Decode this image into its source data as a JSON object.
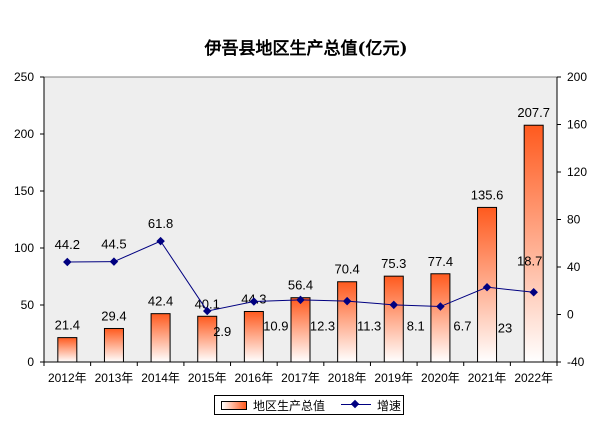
{
  "chart_data": {
    "type": "bar+line",
    "title": "伊吾县地区生产总值(亿元)",
    "categories": [
      "2012年",
      "2013年",
      "2014年",
      "2015年",
      "2016年",
      "2017年",
      "2018年",
      "2019年",
      "2020年",
      "2021年",
      "2022年"
    ],
    "series": [
      {
        "name": "地区生产总值",
        "type": "bar",
        "axis": "left",
        "values": [
          21.4,
          29.4,
          42.4,
          40.1,
          44.3,
          56.4,
          70.4,
          75.3,
          77.4,
          135.6,
          207.7
        ],
        "color": "#ff5a1e"
      },
      {
        "name": "增速",
        "type": "line",
        "axis": "right",
        "values": [
          44.2,
          44.5,
          61.8,
          2.9,
          10.9,
          12.3,
          11.3,
          8.1,
          6.7,
          23,
          18.7
        ],
        "color": "#000080"
      }
    ],
    "left_axis": {
      "range": [
        0,
        250
      ],
      "ticks": [
        0,
        50,
        100,
        150,
        200,
        250
      ]
    },
    "right_axis": {
      "range": [
        -40,
        200
      ],
      "ticks": [
        -40,
        0,
        40,
        80,
        120,
        160,
        200
      ]
    },
    "grid": false,
    "legend": "bottom",
    "plot_background": "#eeeeee"
  }
}
